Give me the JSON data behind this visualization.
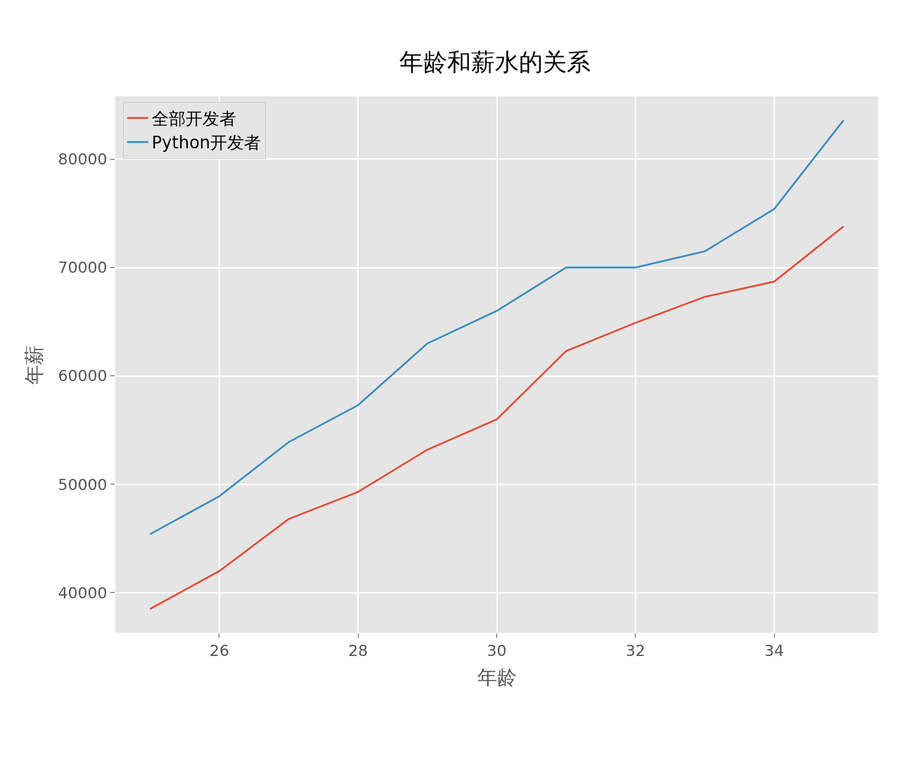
{
  "chart_data": {
    "type": "line",
    "title": "年龄和薪水的关系",
    "xlabel": "年龄",
    "ylabel": "年薪",
    "x": [
      25,
      26,
      27,
      28,
      29,
      30,
      31,
      32,
      33,
      34,
      35
    ],
    "series": [
      {
        "name": "全部开发者",
        "color": "#e24a33",
        "values": [
          38500,
          42000,
          46800,
          49300,
          53200,
          56000,
          62300,
          64900,
          67300,
          68700,
          73800
        ]
      },
      {
        "name": "Python开发者",
        "color": "#348abd",
        "values": [
          45400,
          48900,
          53900,
          57300,
          63000,
          66000,
          70000,
          70000,
          71500,
          75400,
          83600
        ]
      }
    ],
    "xlim": [
      24.5,
      35.5
    ],
    "xticks": [
      26,
      28,
      30,
      32,
      34
    ],
    "ylim": [
      36300,
      85800
    ],
    "yticks": [
      40000,
      50000,
      60000,
      70000,
      80000
    ],
    "grid": true,
    "legend": "top left",
    "marker": "none",
    "line_style": "solid"
  }
}
